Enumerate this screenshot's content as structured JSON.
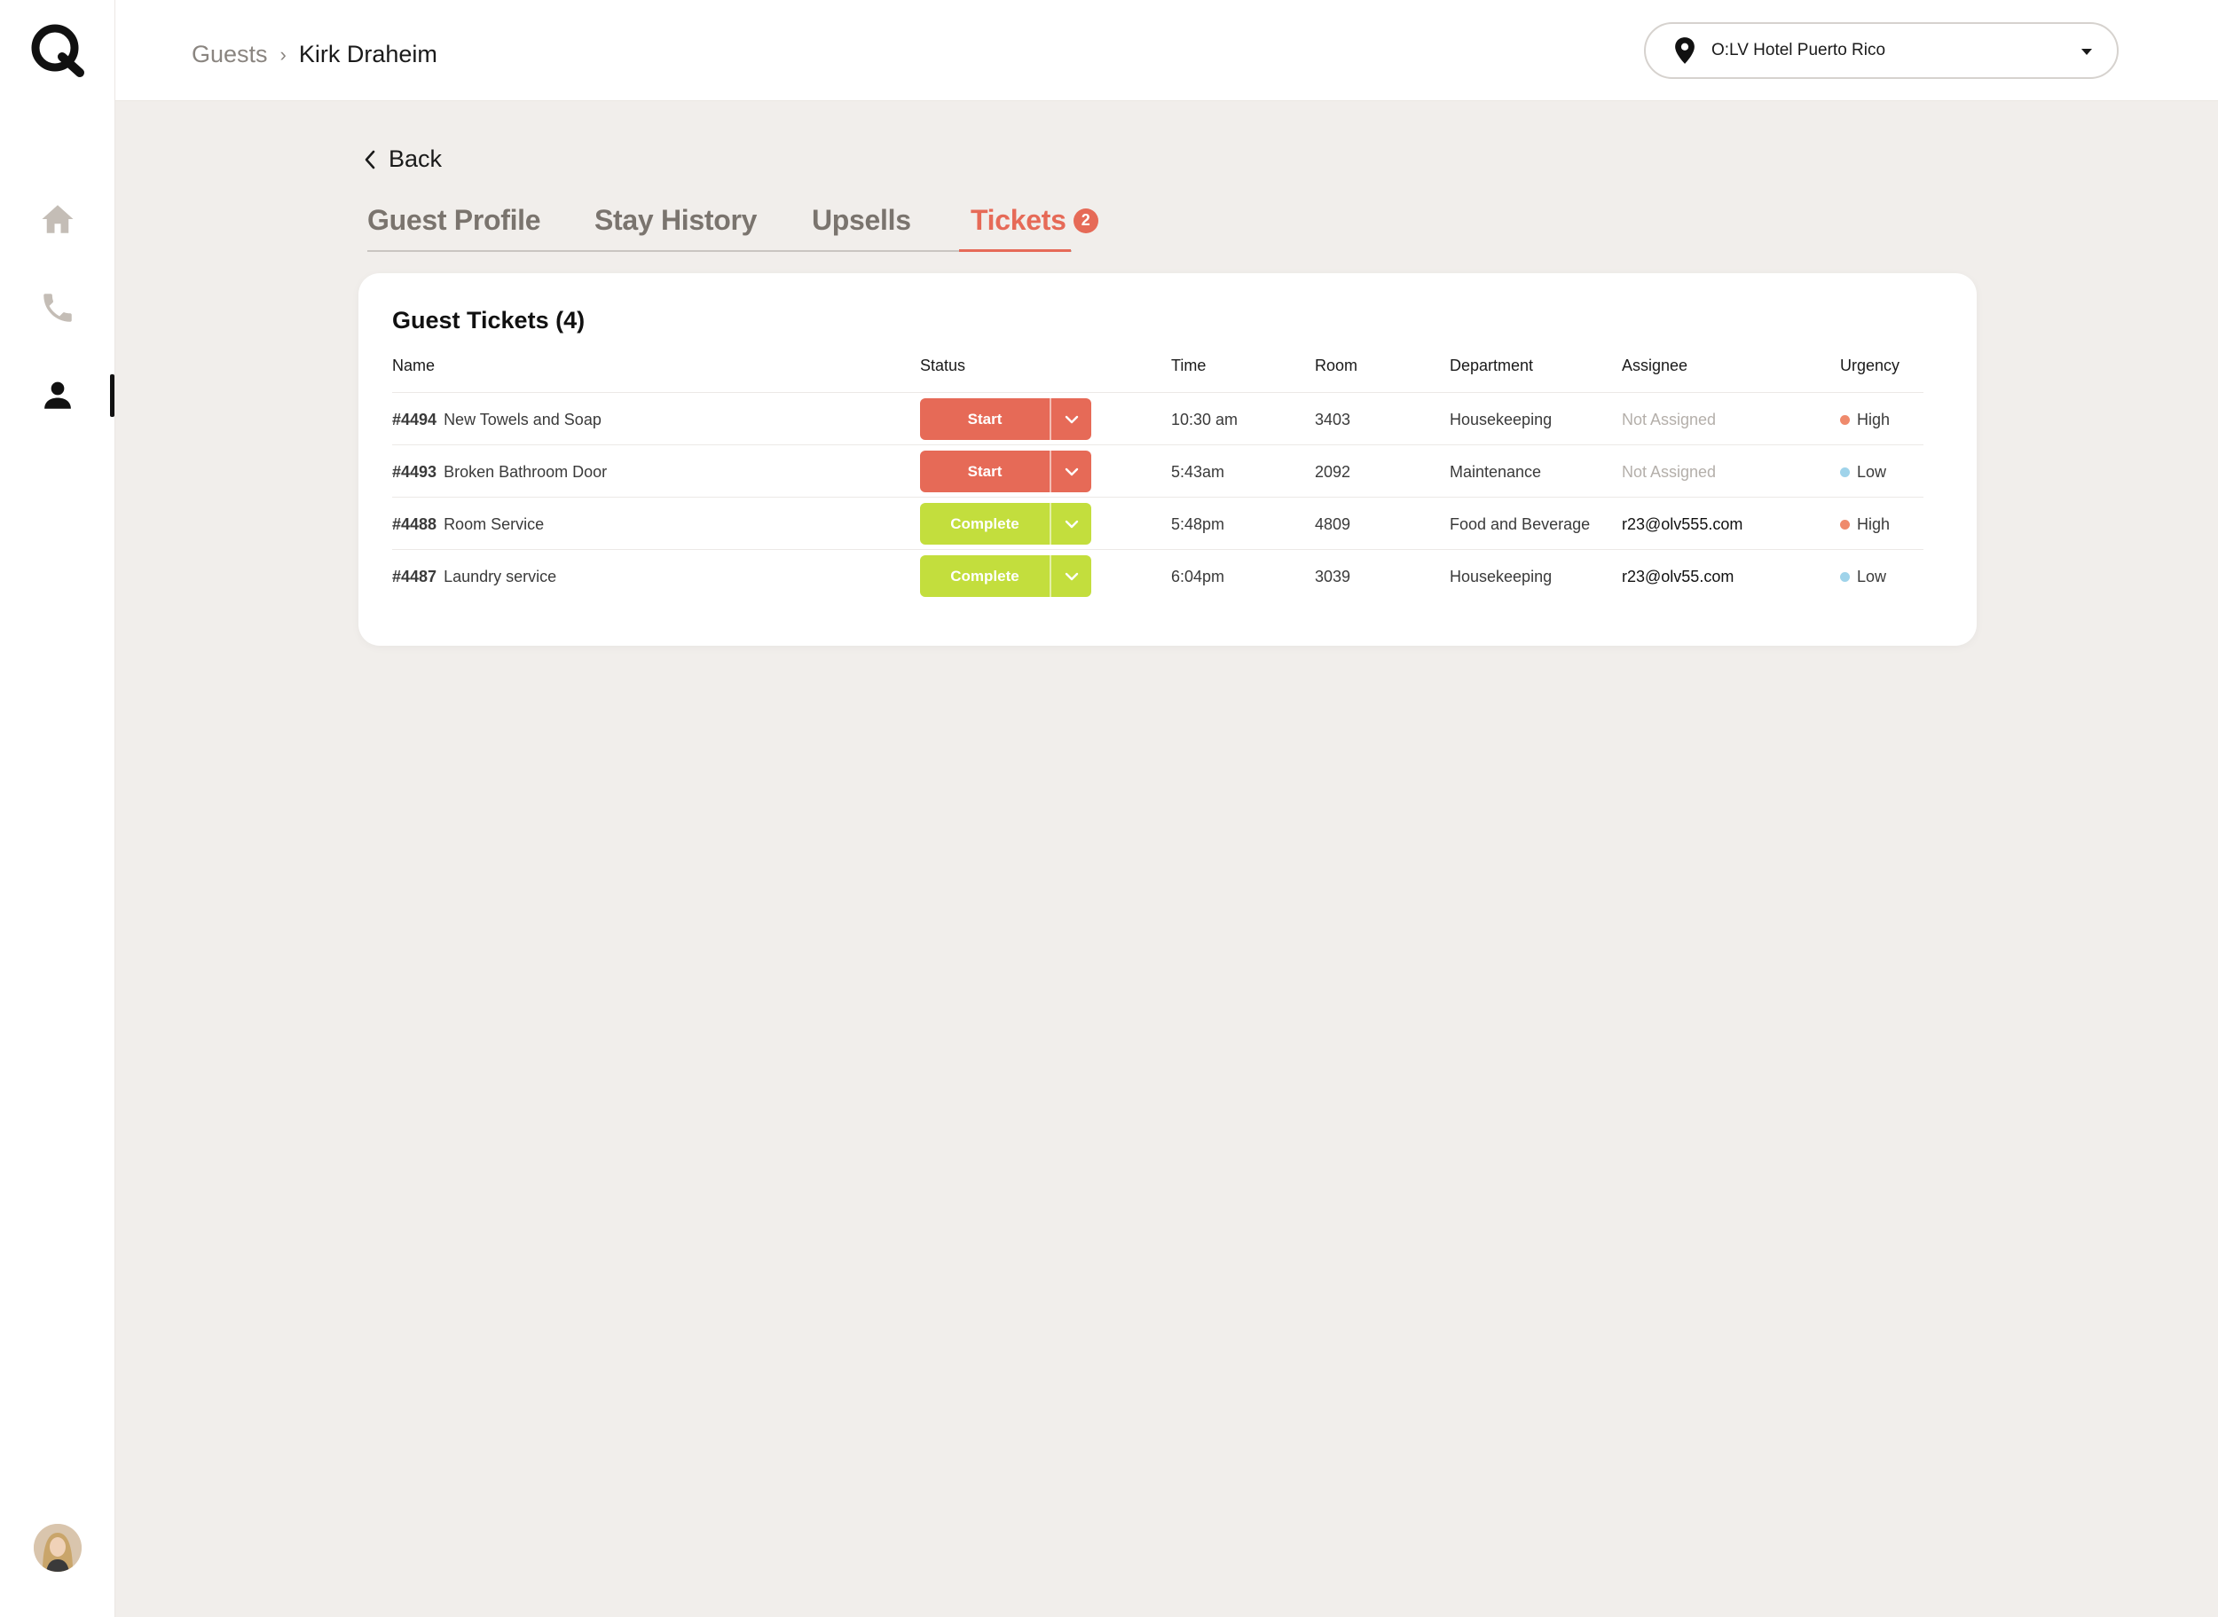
{
  "header": {
    "breadcrumb_parent": "Guests",
    "breadcrumb_separator": "›",
    "breadcrumb_current": "Kirk Draheim",
    "hotel_selector": "O:LV Hotel Puerto Rico"
  },
  "back_label": "Back",
  "tabs": [
    {
      "label": "Guest Profile"
    },
    {
      "label": "Stay History"
    },
    {
      "label": "Upsells"
    },
    {
      "label": "Tickets",
      "badge": "2",
      "active": true
    }
  ],
  "card": {
    "title": "Guest Tickets (4)",
    "columns": [
      "Name",
      "Status",
      "Time",
      "Room",
      "Department",
      "Assignee",
      "Urgency"
    ],
    "rows": [
      {
        "id": "#4494",
        "name": "New Towels and Soap",
        "status": "Start",
        "time": "10:30 am",
        "room": "3403",
        "department": "Housekeeping",
        "assignee": "Not Assigned",
        "urgency": "High"
      },
      {
        "id": "#4493",
        "name": "Broken Bathroom Door",
        "status": "Start",
        "time": "5:43am",
        "room": "2092",
        "department": "Maintenance",
        "assignee": "Not Assigned",
        "urgency": "Low"
      },
      {
        "id": "#4488",
        "name": "Room Service",
        "status": "Complete",
        "time": "5:48pm",
        "room": "4809",
        "department": "Food and Beverage",
        "assignee": "r23@olv555.com",
        "urgency": "High"
      },
      {
        "id": "#4487",
        "name": "Laundry service",
        "status": "Complete",
        "time": "6:04pm",
        "room": "3039",
        "department": "Housekeeping",
        "assignee": "r23@olv55.com",
        "urgency": "Low"
      }
    ]
  },
  "colors": {
    "accent": "#e66a57",
    "complete": "#c3de3d",
    "urgency_high": "#ef8a6c",
    "urgency_low": "#9fd3ea",
    "background": "#f1eeeb"
  },
  "icons": {
    "logo": "q-logo-icon",
    "nav": [
      "home-icon",
      "phone-icon",
      "user-icon"
    ],
    "location": "map-pin-icon",
    "back": "chevron-left-icon",
    "dropdown": "chevron-down-icon"
  }
}
